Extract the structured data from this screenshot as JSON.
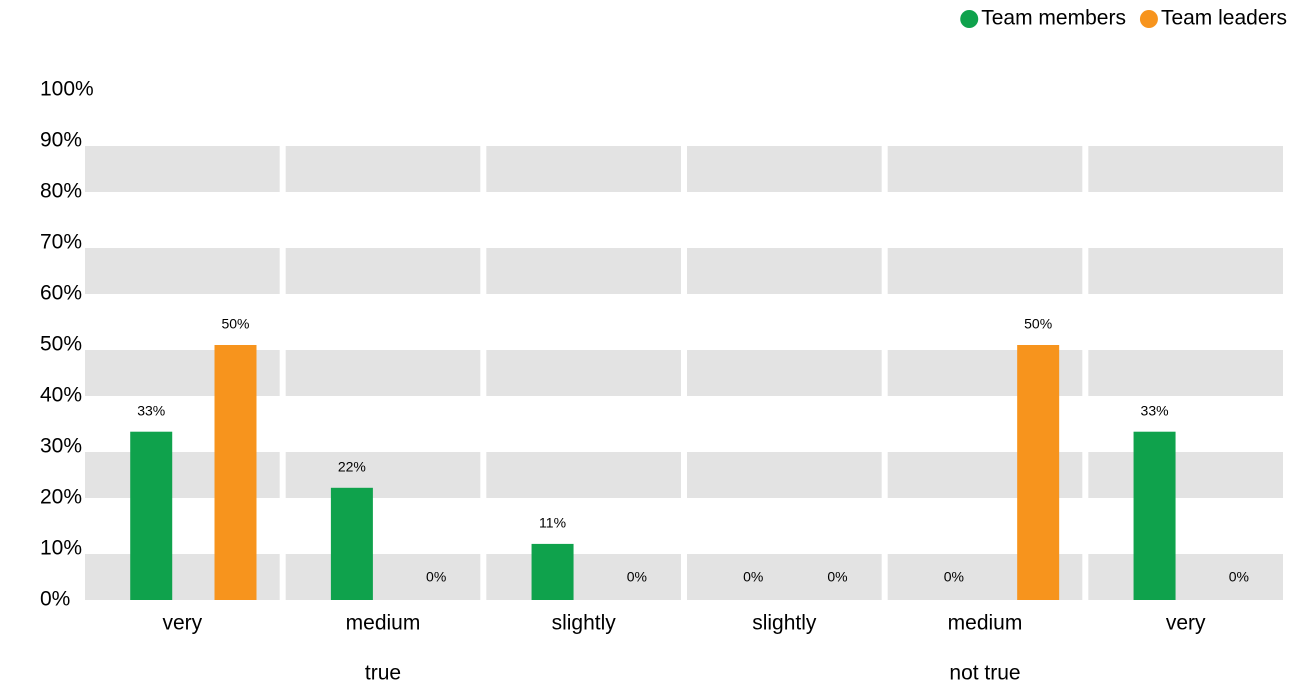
{
  "chart_data": {
    "type": "bar",
    "categories": [
      "very",
      "medium",
      "slightly",
      "slightly",
      "medium",
      "very"
    ],
    "group_labels": [
      "true",
      "not true"
    ],
    "series": [
      {
        "name": "Team members",
        "color": "#0fa24c",
        "values": [
          33,
          22,
          11,
          0,
          0,
          33
        ],
        "value_labels": [
          "33%",
          "22%",
          "11%",
          "0%",
          "0%",
          "33%"
        ]
      },
      {
        "name": "Team leaders",
        "color": "#f7941d",
        "values": [
          50,
          0,
          0,
          0,
          50,
          0
        ],
        "value_labels": [
          "50%",
          "0%",
          "0%",
          "0%",
          "50%",
          "0%"
        ]
      }
    ],
    "ylim": [
      0,
      100
    ],
    "yticks": [
      {
        "value": 0,
        "label": "0%"
      },
      {
        "value": 10,
        "label": "10%"
      },
      {
        "value": 20,
        "label": "20%"
      },
      {
        "value": 30,
        "label": "30%"
      },
      {
        "value": 40,
        "label": "40%"
      },
      {
        "value": 50,
        "label": "50%"
      },
      {
        "value": 60,
        "label": "60%"
      },
      {
        "value": 70,
        "label": "70%"
      },
      {
        "value": 80,
        "label": "80%"
      },
      {
        "value": 90,
        "label": "90%"
      },
      {
        "value": 100,
        "label": "100%"
      }
    ],
    "grid": true,
    "legend": "top-right"
  }
}
